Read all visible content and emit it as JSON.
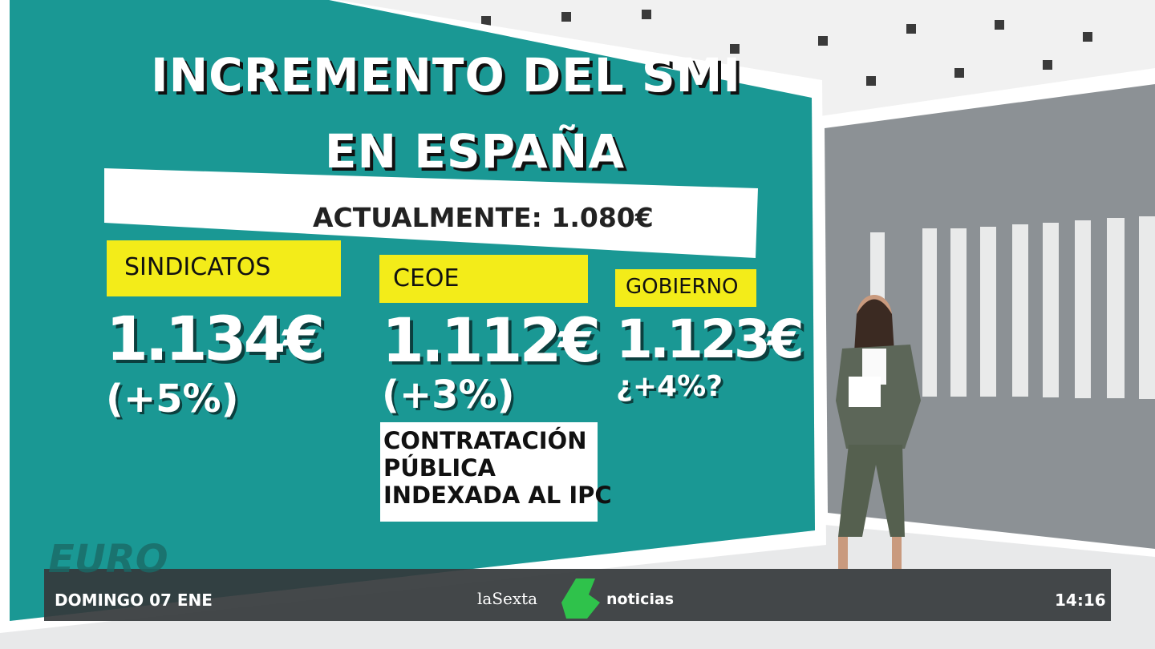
{
  "title": {
    "line1": "INCREMENTO DEL SMI",
    "line2": "EN ESPAÑA"
  },
  "current": "ACTUALMENTE: 1.080€",
  "proposals": [
    {
      "label": "SINDICATOS",
      "amount": "1.134€",
      "change": "(+5%)"
    },
    {
      "label": "CEOE",
      "amount": "1.112€",
      "change": "(+3%)"
    },
    {
      "label": "GOBIERNO",
      "amount": "1.123€",
      "change": "¿+4%?"
    }
  ],
  "note": [
    "CONTRATACIÓN",
    "PÚBLICA",
    "INDEXADA AL IPC"
  ],
  "background_text": "EURO",
  "ticker": {
    "date": "DOMINGO 07 ENE",
    "brand": "laSexta",
    "section": "noticias",
    "time": "14:16"
  }
}
